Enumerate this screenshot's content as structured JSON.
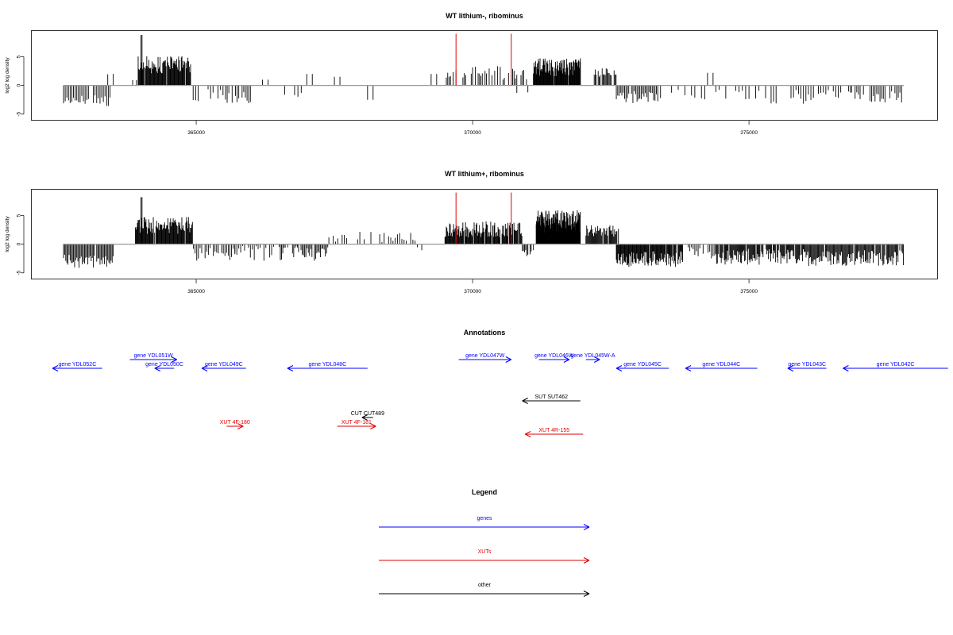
{
  "chart_data": [
    {
      "type": "bar",
      "title": "WT lithium-, ribominus",
      "ylabel": "log2 log density",
      "xlabel": "",
      "xlim": [
        362000,
        378500
      ],
      "ylim": [
        -6,
        9.5
      ],
      "x_ticks": [
        365000,
        370000,
        375000
      ],
      "y_ticks": [
        -5,
        0,
        5
      ],
      "grid": false,
      "baseline": 0,
      "marker_lines": {
        "color": "#e00000",
        "x": [
          369700,
          370700
        ],
        "height": 9
      },
      "segments": [
        {
          "from": 362600,
          "to": 363450,
          "step": 30,
          "center": -2.6,
          "spread": 1.0,
          "fill": 0.9
        },
        {
          "from": 363400,
          "to": 363500,
          "step": 100,
          "center": 2.0,
          "spread": 0.1,
          "fill": 1
        },
        {
          "from": 363850,
          "to": 363920,
          "step": 70,
          "center": 1.0,
          "spread": 0.1,
          "fill": 1
        },
        {
          "from": 363950,
          "to": 364900,
          "step": 12,
          "center": 3.6,
          "spread": 1.5,
          "fill": 0.95
        },
        {
          "from": 364000,
          "to": 364020,
          "step": 20,
          "center": 8.8,
          "spread": 0,
          "fill": 1
        },
        {
          "from": 364900,
          "to": 365550,
          "step": 45,
          "center": -1.6,
          "spread": 1.2,
          "fill": 0.8
        },
        {
          "from": 365500,
          "to": 366000,
          "step": 30,
          "center": -2.2,
          "spread": 1.3,
          "fill": 0.8
        },
        {
          "from": 366200,
          "to": 366300,
          "step": 100,
          "center": 1.0,
          "spread": 0,
          "fill": 1
        },
        {
          "from": 366600,
          "to": 367000,
          "step": 60,
          "center": -1.5,
          "spread": 1.0,
          "fill": 0.7
        },
        {
          "from": 367000,
          "to": 367100,
          "step": 100,
          "center": 2.0,
          "spread": 0,
          "fill": 1
        },
        {
          "from": 367500,
          "to": 367600,
          "step": 100,
          "center": 1.5,
          "spread": 0,
          "fill": 1
        },
        {
          "from": 368100,
          "to": 368200,
          "step": 100,
          "center": -2.5,
          "spread": 0,
          "fill": 1
        },
        {
          "from": 369250,
          "to": 369350,
          "step": 100,
          "center": 2.0,
          "spread": 0,
          "fill": 1
        },
        {
          "from": 369500,
          "to": 371000,
          "step": 25,
          "center": 2.2,
          "spread": 1.2,
          "fill": 0.7
        },
        {
          "from": 370800,
          "to": 371000,
          "step": 50,
          "center": -1.4,
          "spread": 0.5,
          "fill": 0.6
        },
        {
          "from": 371100,
          "to": 371950,
          "step": 10,
          "center": 3.2,
          "spread": 1.6,
          "fill": 0.95
        },
        {
          "from": 372200,
          "to": 372600,
          "step": 18,
          "center": 2.2,
          "spread": 0.9,
          "fill": 0.9
        },
        {
          "from": 372600,
          "to": 373400,
          "step": 25,
          "center": -2.0,
          "spread": 1.1,
          "fill": 0.85
        },
        {
          "from": 373600,
          "to": 374200,
          "step": 60,
          "center": -1.6,
          "spread": 1.0,
          "fill": 0.7
        },
        {
          "from": 374250,
          "to": 374350,
          "step": 100,
          "center": 2.2,
          "spread": 0,
          "fill": 1
        },
        {
          "from": 374400,
          "to": 375300,
          "step": 60,
          "center": -1.5,
          "spread": 1.1,
          "fill": 0.6
        },
        {
          "from": 375400,
          "to": 376700,
          "step": 45,
          "center": -2.0,
          "spread": 1.2,
          "fill": 0.75
        },
        {
          "from": 376800,
          "to": 377800,
          "step": 30,
          "center": -2.0,
          "spread": 1.0,
          "fill": 0.8
        }
      ]
    },
    {
      "type": "bar",
      "title": "WT lithium+, ribominus",
      "ylabel": "log2 log density",
      "xlabel": "",
      "xlim": [
        362000,
        378500
      ],
      "ylim": [
        -6,
        9.5
      ],
      "x_ticks": [
        365000,
        370000,
        375000
      ],
      "y_ticks": [
        -5,
        0,
        5
      ],
      "grid": false,
      "baseline": 0,
      "marker_lines": {
        "color": "#e00000",
        "x": [
          369700,
          370700
        ],
        "height": 9
      },
      "segments": [
        {
          "from": 362600,
          "to": 363500,
          "step": 20,
          "center": -3.0,
          "spread": 1.2,
          "fill": 0.95
        },
        {
          "from": 363900,
          "to": 364950,
          "step": 12,
          "center": 3.3,
          "spread": 1.5,
          "fill": 0.95
        },
        {
          "from": 364000,
          "to": 364020,
          "step": 20,
          "center": 8.2,
          "spread": 0,
          "fill": 1
        },
        {
          "from": 364950,
          "to": 365700,
          "step": 30,
          "center": -1.8,
          "spread": 1.2,
          "fill": 0.85
        },
        {
          "from": 365700,
          "to": 366400,
          "step": 35,
          "center": -1.3,
          "spread": 1.6,
          "fill": 0.85
        },
        {
          "from": 366500,
          "to": 367400,
          "step": 22,
          "center": -1.4,
          "spread": 1.6,
          "fill": 0.9
        },
        {
          "from": 367400,
          "to": 369000,
          "step": 40,
          "center": 1.0,
          "spread": 1.3,
          "fill": 0.7
        },
        {
          "from": 369000,
          "to": 369400,
          "step": 80,
          "center": -1.0,
          "spread": 0.5,
          "fill": 0.5
        },
        {
          "from": 369500,
          "to": 370900,
          "step": 12,
          "center": 2.6,
          "spread": 1.4,
          "fill": 0.95
        },
        {
          "from": 370900,
          "to": 371150,
          "step": 20,
          "center": -1.5,
          "spread": 0.6,
          "fill": 0.8
        },
        {
          "from": 371150,
          "to": 371950,
          "step": 6,
          "center": 4.0,
          "spread": 2.0,
          "fill": 1
        },
        {
          "from": 372050,
          "to": 372650,
          "step": 14,
          "center": 2.3,
          "spread": 1.0,
          "fill": 0.9
        },
        {
          "from": 372600,
          "to": 373800,
          "step": 12,
          "center": -2.6,
          "spread": 1.4,
          "fill": 0.95
        },
        {
          "from": 373900,
          "to": 374400,
          "step": 30,
          "center": -1.5,
          "spread": 1.0,
          "fill": 0.7
        },
        {
          "from": 374400,
          "to": 376000,
          "step": 14,
          "center": -2.2,
          "spread": 1.4,
          "fill": 0.9
        },
        {
          "from": 376000,
          "to": 377800,
          "step": 16,
          "center": -2.4,
          "spread": 1.4,
          "fill": 0.9
        }
      ]
    }
  ],
  "annotations": {
    "title": "Annotations",
    "features": [
      {
        "label": "gene YDL052C",
        "start": 363300,
        "end": 362400,
        "row": 1,
        "color": "#0000ff"
      },
      {
        "label": "gene YDL051W",
        "start": 363800,
        "end": 364650,
        "row": 0,
        "color": "#0000ff"
      },
      {
        "label": "gene YDL050C",
        "start": 364600,
        "end": 364250,
        "row": 1,
        "color": "#0000ff"
      },
      {
        "label": "gene YDL049C",
        "start": 365900,
        "end": 365100,
        "row": 1,
        "color": "#0000ff"
      },
      {
        "label": "gene YDL048C",
        "start": 368100,
        "end": 366650,
        "row": 1,
        "color": "#0000ff"
      },
      {
        "label": "gene YDL047W",
        "start": 369750,
        "end": 370700,
        "row": 0,
        "color": "#0000ff"
      },
      {
        "label": "gene YDL046W",
        "start": 371200,
        "end": 371750,
        "row": 0,
        "color": "#0000ff"
      },
      {
        "label": "gene YDL045W-A",
        "start": 372050,
        "end": 372300,
        "row": 0,
        "color": "#0000ff"
      },
      {
        "label": "gene YDL045C",
        "start": 373550,
        "end": 372600,
        "row": 1,
        "color": "#0000ff"
      },
      {
        "label": "gene YDL044C",
        "start": 375150,
        "end": 373850,
        "row": 1,
        "color": "#0000ff"
      },
      {
        "label": "gene YDL043C",
        "start": 376400,
        "end": 375700,
        "row": 1,
        "color": "#0000ff"
      },
      {
        "label": "gene YDL042C",
        "start": 378600,
        "end": 376700,
        "row": 1,
        "color": "#0000ff"
      },
      {
        "label": "SUT SUT462",
        "start": 371950,
        "end": 370900,
        "row": 3,
        "color": "#000000"
      },
      {
        "label": "CUT CUT489",
        "start": 368200,
        "end": 368000,
        "row": 4,
        "color": "#000000"
      },
      {
        "label": "XUT 4F-180",
        "start": 365550,
        "end": 365850,
        "row": 5,
        "color": "#e00000"
      },
      {
        "label": "XUT 4F-181",
        "start": 367550,
        "end": 368250,
        "row": 5,
        "color": "#e00000"
      },
      {
        "label": "XUT 4R-155",
        "start": 372000,
        "end": 370950,
        "row": 6,
        "color": "#e00000"
      }
    ]
  },
  "legend": {
    "title": "Legend",
    "items": [
      {
        "label": "genes",
        "color": "#0000ff"
      },
      {
        "label": "XUTs",
        "color": "#e00000"
      },
      {
        "label": "other",
        "color": "#000000"
      }
    ]
  }
}
